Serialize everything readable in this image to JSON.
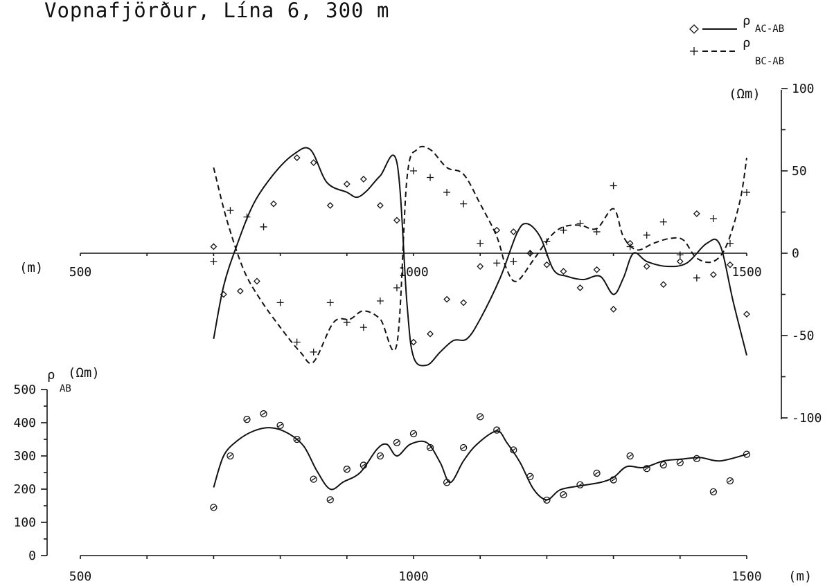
{
  "chart_data": [
    {
      "type": "line",
      "title": "Vopnafjörður, Lína 6, 300 m",
      "x_axis_unit": "(m)",
      "y_axis_unit": "(Ωm)",
      "xlim": [
        500,
        1500
      ],
      "ylim": [
        -100,
        100
      ],
      "x_ticks": [
        "500",
        "1000",
        "1500"
      ],
      "y_ticks": [
        "100",
        "50",
        "0",
        "-50",
        "-100"
      ],
      "legend_placement": "top-right",
      "legend": [
        {
          "symbol": "ρ",
          "subscript": "AC-AB",
          "marker": "diamond",
          "line": "solid"
        },
        {
          "symbol": "ρ",
          "subscript": "BC-AB",
          "marker": "plus",
          "line": "dashed"
        }
      ],
      "series": [
        {
          "name": "ρ AC-AB",
          "marker": "diamond",
          "points": [
            [
              700,
              4
            ],
            [
              715,
              -25
            ],
            [
              740,
              -23
            ],
            [
              765,
              -17
            ],
            [
              790,
              30
            ],
            [
              825,
              58
            ],
            [
              850,
              55
            ],
            [
              875,
              29
            ],
            [
              900,
              42
            ],
            [
              925,
              45
            ],
            [
              950,
              29
            ],
            [
              975,
              20
            ],
            [
              1000,
              -54
            ],
            [
              1025,
              -49
            ],
            [
              1050,
              -28
            ],
            [
              1075,
              -30
            ],
            [
              1100,
              -8
            ],
            [
              1125,
              14
            ],
            [
              1150,
              13
            ],
            [
              1175,
              0
            ],
            [
              1200,
              -7
            ],
            [
              1225,
              -11
            ],
            [
              1250,
              -21
            ],
            [
              1275,
              -10
            ],
            [
              1300,
              -34
            ],
            [
              1325,
              6
            ],
            [
              1350,
              -8
            ],
            [
              1375,
              -19
            ],
            [
              1400,
              -5
            ],
            [
              1425,
              24
            ],
            [
              1450,
              -13
            ],
            [
              1475,
              -7
            ],
            [
              1500,
              -37
            ]
          ]
        },
        {
          "name": "ρ BC-AB",
          "marker": "plus",
          "points": [
            [
              700,
              -5
            ],
            [
              725,
              26
            ],
            [
              750,
              22
            ],
            [
              775,
              16
            ],
            [
              800,
              -30
            ],
            [
              825,
              -54
            ],
            [
              850,
              -60
            ],
            [
              875,
              -30
            ],
            [
              900,
              -42
            ],
            [
              925,
              -45
            ],
            [
              950,
              -29
            ],
            [
              975,
              -21
            ],
            [
              1000,
              50
            ],
            [
              1025,
              46
            ],
            [
              1050,
              37
            ],
            [
              1075,
              30
            ],
            [
              1100,
              6
            ],
            [
              1125,
              -6
            ],
            [
              1150,
              -5
            ],
            [
              1175,
              0
            ],
            [
              1200,
              7
            ],
            [
              1225,
              14
            ],
            [
              1250,
              18
            ],
            [
              1275,
              13
            ],
            [
              1300,
              41
            ],
            [
              1325,
              4
            ],
            [
              1350,
              11
            ],
            [
              1375,
              19
            ],
            [
              1400,
              -1
            ],
            [
              1425,
              -15
            ],
            [
              1450,
              21
            ],
            [
              1475,
              6
            ],
            [
              1500,
              37
            ]
          ]
        }
      ],
      "curves": [
        {
          "name": "ρ AC-AB fit",
          "style": "solid",
          "points": [
            [
              700,
              -52
            ],
            [
              715,
              -20
            ],
            [
              735,
              5
            ],
            [
              760,
              30
            ],
            [
              790,
              48
            ],
            [
              820,
              60
            ],
            [
              845,
              63
            ],
            [
              870,
              43
            ],
            [
              900,
              37
            ],
            [
              915,
              34
            ],
            [
              930,
              38
            ],
            [
              950,
              47
            ],
            [
              975,
              55
            ],
            [
              990,
              -30
            ],
            [
              1000,
              -63
            ],
            [
              1020,
              -68
            ],
            [
              1040,
              -60
            ],
            [
              1060,
              -53
            ],
            [
              1080,
              -52
            ],
            [
              1100,
              -40
            ],
            [
              1130,
              -15
            ],
            [
              1155,
              12
            ],
            [
              1170,
              18
            ],
            [
              1190,
              10
            ],
            [
              1210,
              -10
            ],
            [
              1230,
              -14
            ],
            [
              1255,
              -16
            ],
            [
              1280,
              -14
            ],
            [
              1300,
              -25
            ],
            [
              1315,
              -15
            ],
            [
              1330,
              0
            ],
            [
              1350,
              -5
            ],
            [
              1380,
              -8
            ],
            [
              1410,
              -6
            ],
            [
              1440,
              6
            ],
            [
              1460,
              5
            ],
            [
              1480,
              -30
            ],
            [
              1500,
              -62
            ]
          ]
        },
        {
          "name": "ρ BC-AB fit",
          "style": "dashed",
          "points": [
            [
              700,
              52
            ],
            [
              720,
              20
            ],
            [
              745,
              -10
            ],
            [
              770,
              -28
            ],
            [
              800,
              -45
            ],
            [
              830,
              -60
            ],
            [
              850,
              -66
            ],
            [
              880,
              -42
            ],
            [
              905,
              -40
            ],
            [
              925,
              -35
            ],
            [
              950,
              -40
            ],
            [
              975,
              -55
            ],
            [
              990,
              45
            ],
            [
              1005,
              63
            ],
            [
              1025,
              63
            ],
            [
              1050,
              52
            ],
            [
              1075,
              48
            ],
            [
              1100,
              30
            ],
            [
              1125,
              10
            ],
            [
              1140,
              -10
            ],
            [
              1155,
              -17
            ],
            [
              1180,
              -4
            ],
            [
              1205,
              10
            ],
            [
              1225,
              16
            ],
            [
              1250,
              17
            ],
            [
              1275,
              15
            ],
            [
              1300,
              27
            ],
            [
              1315,
              10
            ],
            [
              1335,
              2
            ],
            [
              1360,
              6
            ],
            [
              1385,
              9
            ],
            [
              1405,
              8
            ],
            [
              1425,
              -3
            ],
            [
              1450,
              -5
            ],
            [
              1470,
              5
            ],
            [
              1490,
              32
            ],
            [
              1500,
              58
            ]
          ]
        }
      ]
    },
    {
      "type": "scatter",
      "y_axis_symbol": "ρ",
      "y_axis_subscript": "AB",
      "y_axis_unit": "(Ωm)",
      "x_axis_unit": "(m)",
      "xlim": [
        500,
        1500
      ],
      "ylim": [
        0,
        500
      ],
      "x_ticks": [
        "500",
        "1000",
        "1500"
      ],
      "y_ticks": [
        "500",
        "400",
        "300",
        "200",
        "100",
        "0"
      ],
      "series": [
        {
          "name": "ρ AB",
          "marker": "circle",
          "points": [
            [
              700,
              145
            ],
            [
              725,
              300
            ],
            [
              750,
              410
            ],
            [
              775,
              427
            ],
            [
              800,
              392
            ],
            [
              825,
              350
            ],
            [
              850,
              230
            ],
            [
              875,
              168
            ],
            [
              900,
              260
            ],
            [
              925,
              272
            ],
            [
              950,
              300
            ],
            [
              975,
              340
            ],
            [
              1000,
              367
            ],
            [
              1025,
              325
            ],
            [
              1050,
              220
            ],
            [
              1075,
              325
            ],
            [
              1100,
              418
            ],
            [
              1125,
              378
            ],
            [
              1150,
              318
            ],
            [
              1175,
              238
            ],
            [
              1200,
              167
            ],
            [
              1225,
              183
            ],
            [
              1250,
              213
            ],
            [
              1275,
              248
            ],
            [
              1300,
              228
            ],
            [
              1325,
              300
            ],
            [
              1350,
              262
            ],
            [
              1375,
              273
            ],
            [
              1400,
              280
            ],
            [
              1425,
              292
            ],
            [
              1450,
              192
            ],
            [
              1475,
              225
            ],
            [
              1500,
              305
            ]
          ]
        }
      ],
      "curves": [
        {
          "name": "ρ AB fit",
          "style": "solid",
          "points": [
            [
              700,
              205
            ],
            [
              715,
              300
            ],
            [
              735,
              345
            ],
            [
              760,
              375
            ],
            [
              785,
              385
            ],
            [
              810,
              370
            ],
            [
              835,
              330
            ],
            [
              855,
              255
            ],
            [
              875,
              200
            ],
            [
              895,
              222
            ],
            [
              920,
              250
            ],
            [
              945,
              320
            ],
            [
              960,
              335
            ],
            [
              975,
              300
            ],
            [
              995,
              335
            ],
            [
              1020,
              340
            ],
            [
              1040,
              280
            ],
            [
              1055,
              220
            ],
            [
              1075,
              285
            ],
            [
              1095,
              335
            ],
            [
              1125,
              375
            ],
            [
              1140,
              340
            ],
            [
              1160,
              280
            ],
            [
              1180,
              200
            ],
            [
              1200,
              168
            ],
            [
              1220,
              198
            ],
            [
              1250,
              210
            ],
            [
              1280,
              220
            ],
            [
              1300,
              235
            ],
            [
              1320,
              268
            ],
            [
              1345,
              265
            ],
            [
              1375,
              285
            ],
            [
              1400,
              290
            ],
            [
              1430,
              295
            ],
            [
              1460,
              285
            ],
            [
              1500,
              305
            ]
          ]
        }
      ]
    }
  ]
}
